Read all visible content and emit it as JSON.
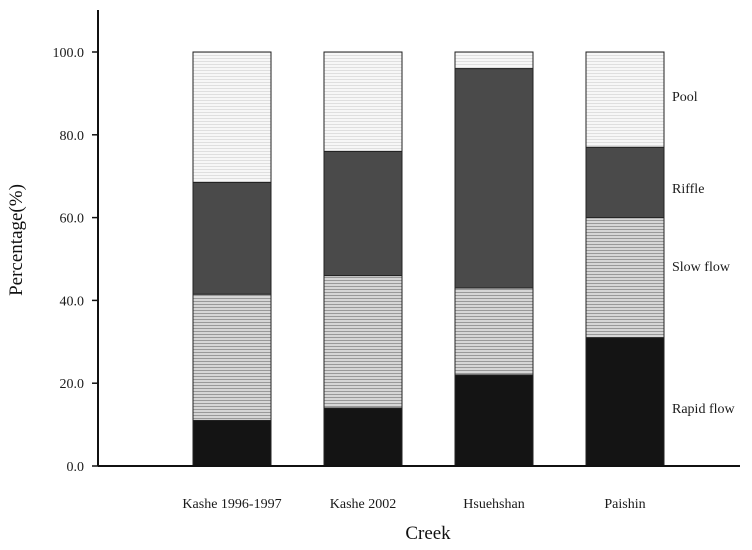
{
  "chart_data": {
    "type": "bar",
    "stacked": true,
    "xlabel": "Creek",
    "ylabel": "Percentage(%)",
    "ylim": [
      0,
      110
    ],
    "yticks": [
      "0.0",
      "20.0",
      "40.0",
      "60.0",
      "80.0",
      "100.0"
    ],
    "categories": [
      "Kashe 1996-1997",
      "Kashe 2002",
      "Hsuehshan",
      "Paishin"
    ],
    "series": [
      {
        "name": "Rapid flow",
        "values": [
          11,
          14,
          22,
          31
        ],
        "color": "#141414"
      },
      {
        "name": "Slow flow",
        "values": [
          30.5,
          32,
          21,
          29
        ],
        "color": "#c4c4c4"
      },
      {
        "name": "Riffle",
        "values": [
          27,
          30,
          53,
          17
        ],
        "color": "#4a4a4a"
      },
      {
        "name": "Pool",
        "values": [
          31.5,
          24,
          4,
          23
        ],
        "color": "#f4f4f4"
      }
    ]
  }
}
